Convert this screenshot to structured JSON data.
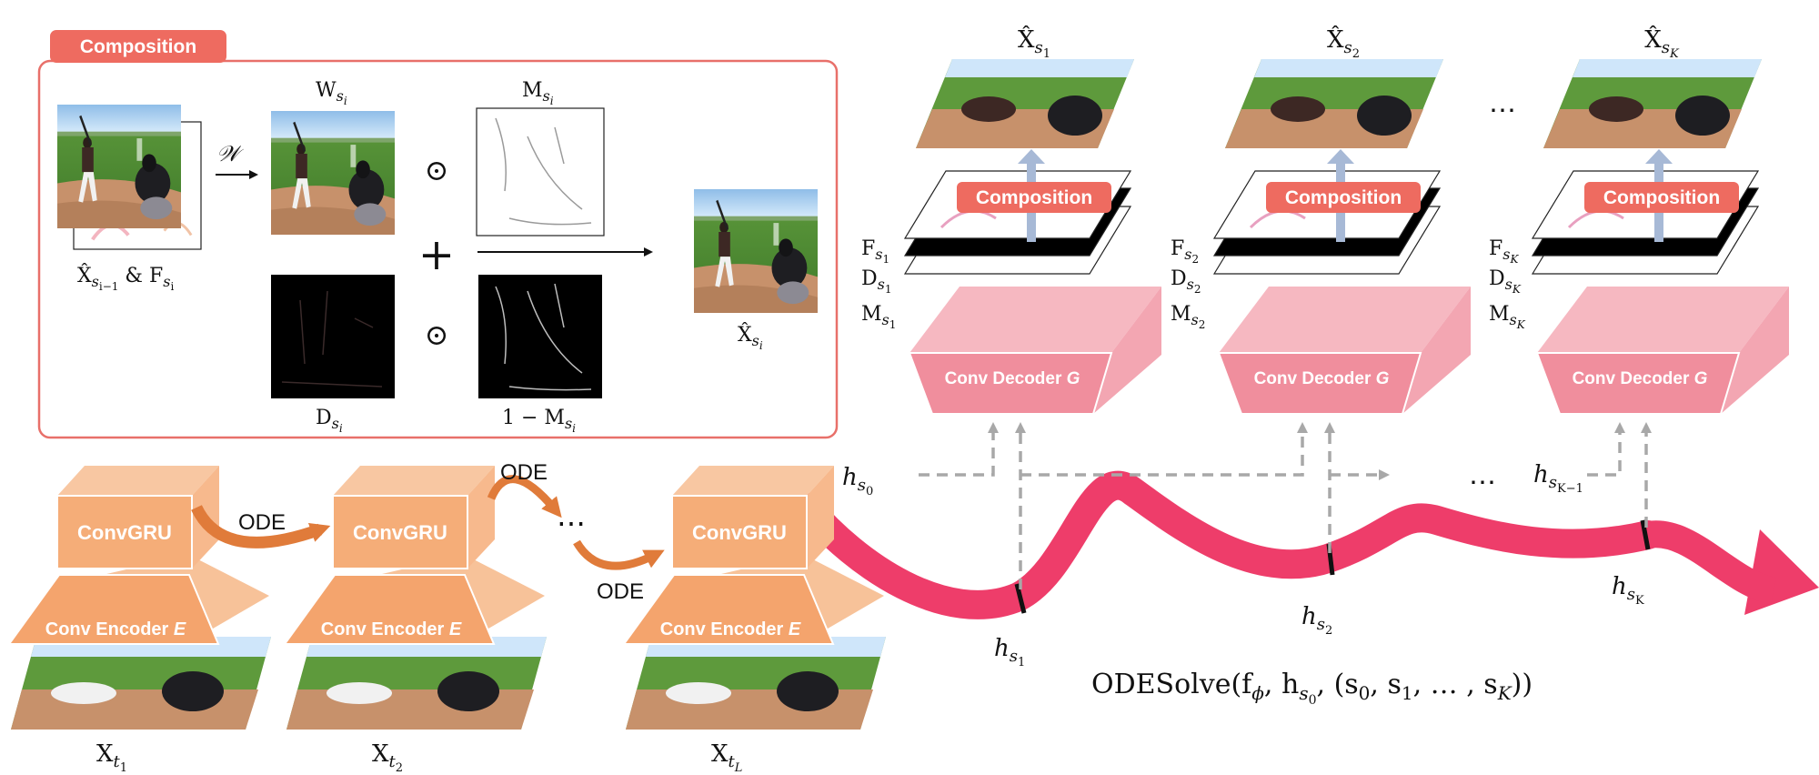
{
  "composition_panel": {
    "tag": "Composition",
    "input_label_main": "X̂",
    "input_label_sub": "s",
    "input_label_subsub": "i−1",
    "input_label_mid": " & F",
    "input_label_sub2": "s",
    "input_label_subsub2": "i",
    "warp_symbol": "𝒲",
    "w_label": "W",
    "d_label": "D",
    "m_label": "M",
    "one_minus_m_label": "1 − M",
    "sub_s": "s",
    "sub_i": "i",
    "odot_symbol": "⊙",
    "plus_symbol": "+",
    "output_label": "X̂"
  },
  "encoder_blocks": [
    {
      "convgru": "ConvGRU",
      "encoder": "Conv Encoder ",
      "encoder_italic": "E",
      "x_label": "X",
      "x_sub": "t",
      "x_subsub": "1"
    },
    {
      "convgru": "ConvGRU",
      "encoder": "Conv Encoder ",
      "encoder_italic": "E",
      "x_label": "X",
      "x_sub": "t",
      "x_subsub": "2"
    },
    {
      "convgru": "ConvGRU",
      "encoder": "Conv Encoder ",
      "encoder_italic": "E",
      "x_label": "X",
      "x_sub": "t",
      "x_subsub": "L"
    }
  ],
  "ode_labels": [
    "ODE",
    "ODE",
    "ODE"
  ],
  "ellipsis": "⋯",
  "decoder_blocks": [
    {
      "decoder": "Conv Decoder ",
      "decoder_italic": "G",
      "composition": "Composition",
      "top_label": "X̂",
      "sub": "1",
      "f": "F",
      "d": "D",
      "m": "M"
    },
    {
      "decoder": "Conv Decoder ",
      "decoder_italic": "G",
      "composition": "Composition",
      "top_label": "X̂",
      "sub": "2",
      "f": "F",
      "d": "D",
      "m": "M"
    },
    {
      "decoder": "Conv Decoder ",
      "decoder_italic": "G",
      "composition": "Composition",
      "top_label": "X̂",
      "sub": "K",
      "f": "F",
      "d": "D",
      "m": "M"
    }
  ],
  "hidden_states": {
    "h": "h",
    "s": "s",
    "h0_sub": "0",
    "h1_sub": "1",
    "h2_sub": "2",
    "hK_sub": "K",
    "hKm1_sub": "K−1"
  },
  "ode_solve": "ODESolve(f",
  "ode_solve_phi": "ϕ",
  "ode_solve_mid": ", h",
  "ode_solve_s0": "s",
  "ode_solve_s0sub": "0",
  "ode_solve_tail1": ", (s",
  "ode_solve_tail_sub0": "0",
  "ode_solve_tail2": ", s",
  "ode_solve_tail_sub1": "1",
  "ode_solve_tail3": ", … , s",
  "ode_solve_tail_subK": "K",
  "ode_solve_tail4": "))",
  "colors": {
    "composition_red": "#ee6b60",
    "box_border": "#e8706a",
    "convgru_orange": "#f5ad78",
    "encoder_orange": "#f4a46d",
    "ode_arrow": "#e07b3a",
    "decoder_pink": "#f08e9d",
    "decoder_pink_light": "#f6b8c1",
    "trajectory": "#ee3d6a",
    "dashed": "#a8a8a8",
    "up_arrow": "#a7b9d6"
  }
}
